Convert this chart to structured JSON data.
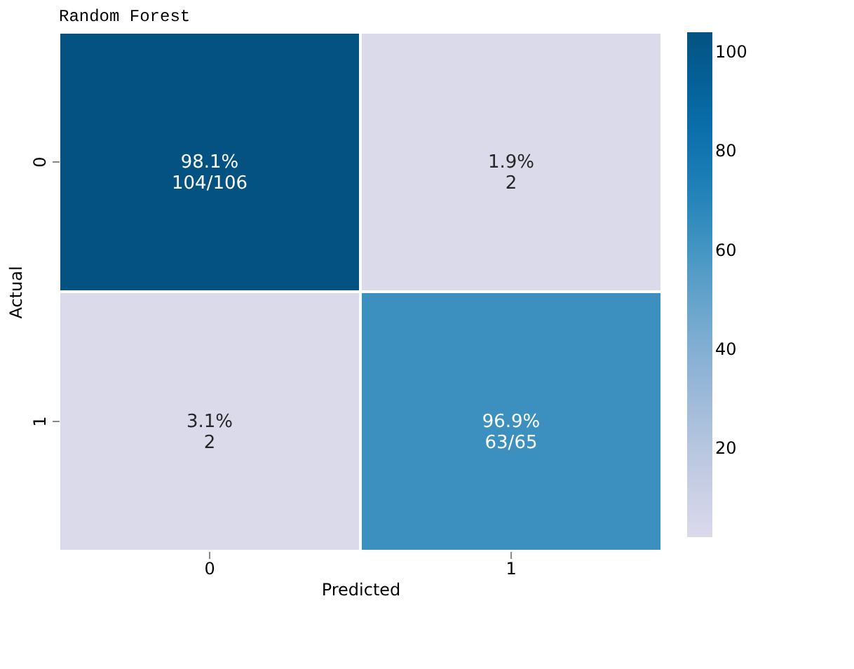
{
  "chart_data": {
    "type": "heatmap",
    "title": "Random Forest",
    "xlabel": "Predicted",
    "ylabel": "Actual",
    "categories": [
      "0",
      "1"
    ],
    "y_categories": [
      "0",
      "1"
    ],
    "cells": [
      [
        104,
        2
      ],
      [
        2,
        63
      ]
    ],
    "cell_labels": [
      [
        "98.1%\n104/106",
        "1.9%\n2"
      ],
      [
        "3.1%\n2",
        "96.9%\n63/65"
      ]
    ],
    "clim": [
      2,
      104
    ],
    "cticks": [
      20,
      40,
      60,
      80,
      100
    ]
  }
}
